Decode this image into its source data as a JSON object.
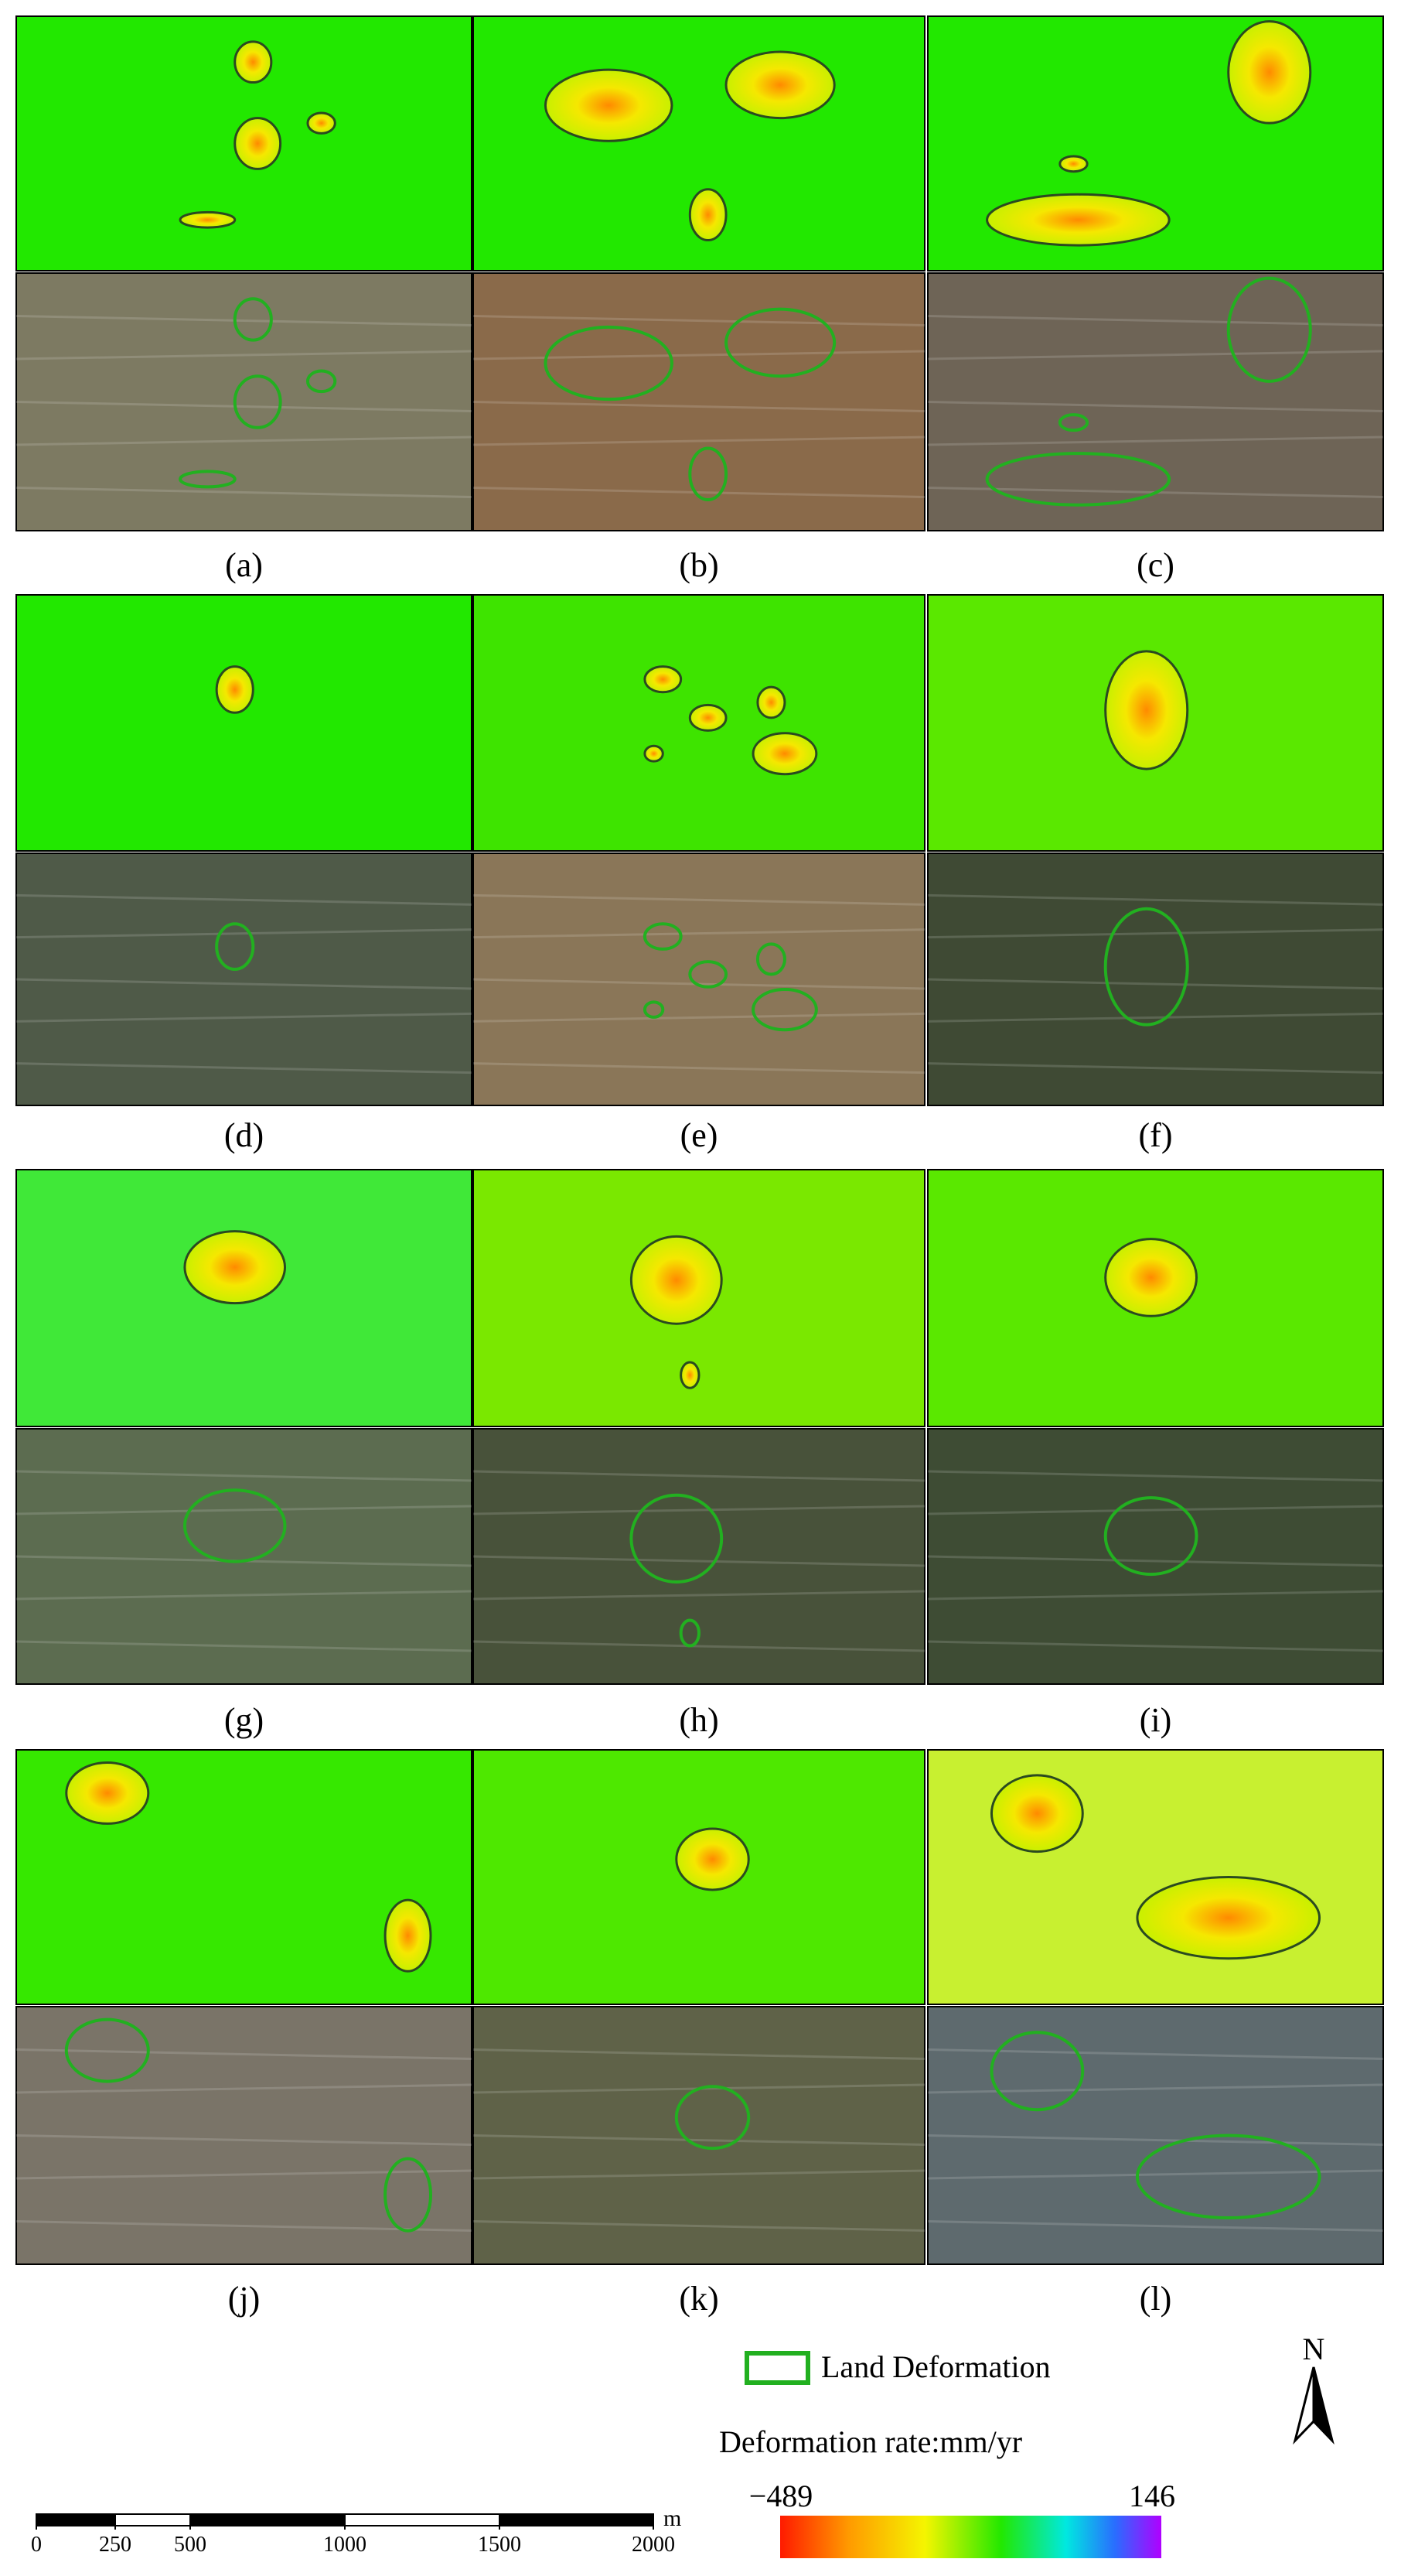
{
  "panels": [
    {
      "label": "(a)"
    },
    {
      "label": "(b)"
    },
    {
      "label": "(c)"
    },
    {
      "label": "(d)"
    },
    {
      "label": "(e)"
    },
    {
      "label": "(f)"
    },
    {
      "label": "(g)"
    },
    {
      "label": "(h)"
    },
    {
      "label": "(i)"
    },
    {
      "label": "(j)"
    },
    {
      "label": "(k)"
    },
    {
      "label": "(l)"
    }
  ],
  "legend": {
    "land_deformation": "Land Deformation",
    "rate_title": "Deformation rate:mm/yr",
    "min": "−489",
    "max": "146"
  },
  "scale_bar": {
    "labels": [
      "0",
      "250",
      "500",
      "1000",
      "1500",
      "2000"
    ],
    "unit": "m"
  },
  "north": "N"
}
